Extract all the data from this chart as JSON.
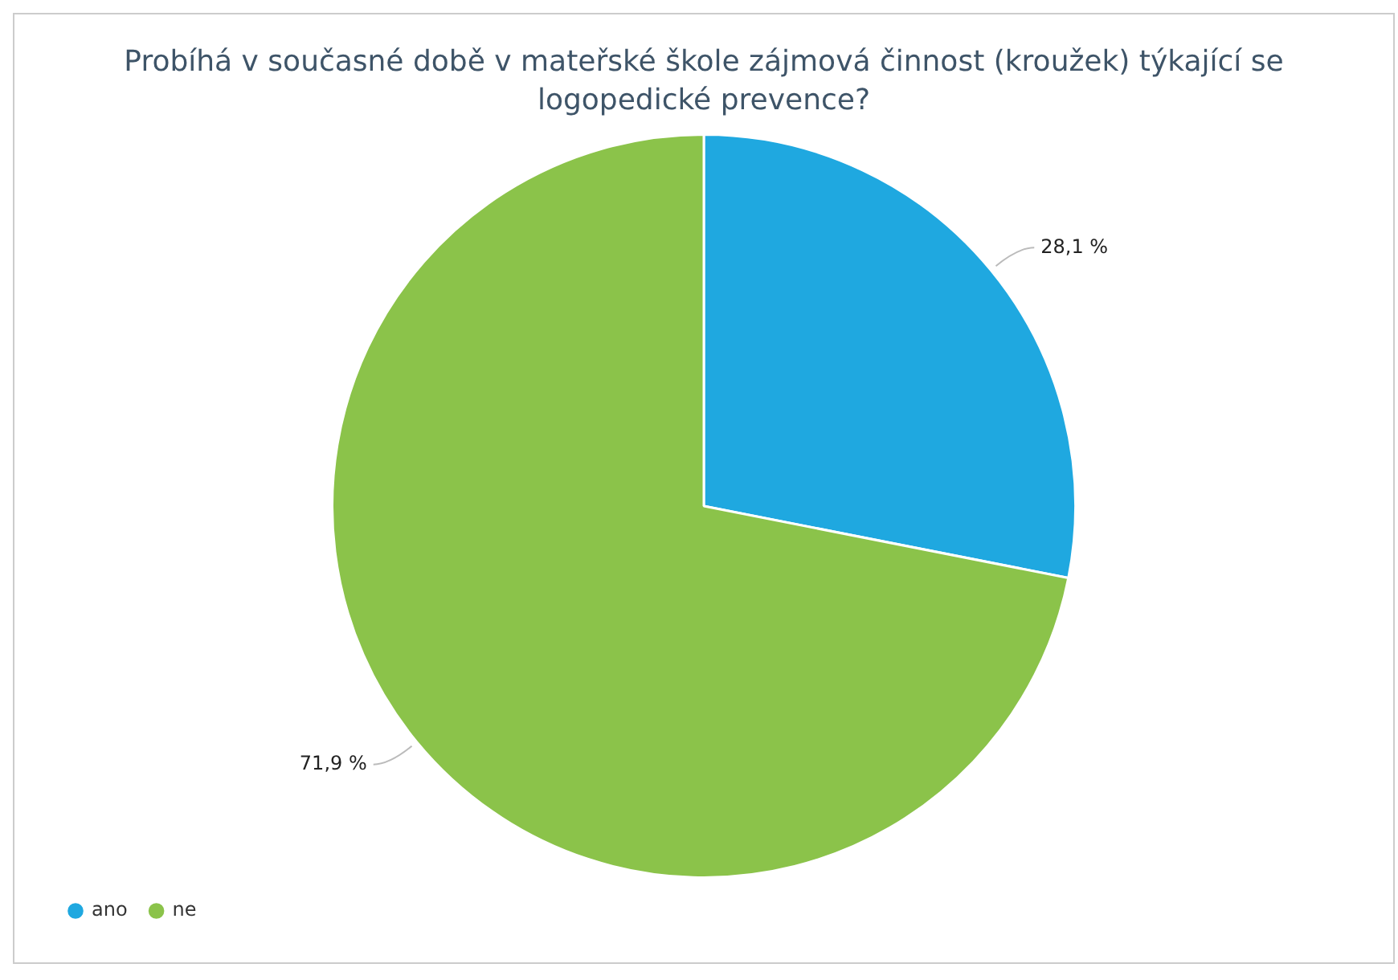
{
  "chart_data": {
    "type": "pie",
    "title": "Probíhá v současné době v mateřské škole zájmová činnost (kroužek) týkající se logopedické prevence?",
    "categories": [
      "ano",
      "ne"
    ],
    "values": [
      28.1,
      71.9
    ],
    "colors": [
      "#1fa8e0",
      "#8bc34a"
    ],
    "value_labels": [
      "28,1 %",
      "71,9 %"
    ],
    "legend": "bottom left"
  }
}
